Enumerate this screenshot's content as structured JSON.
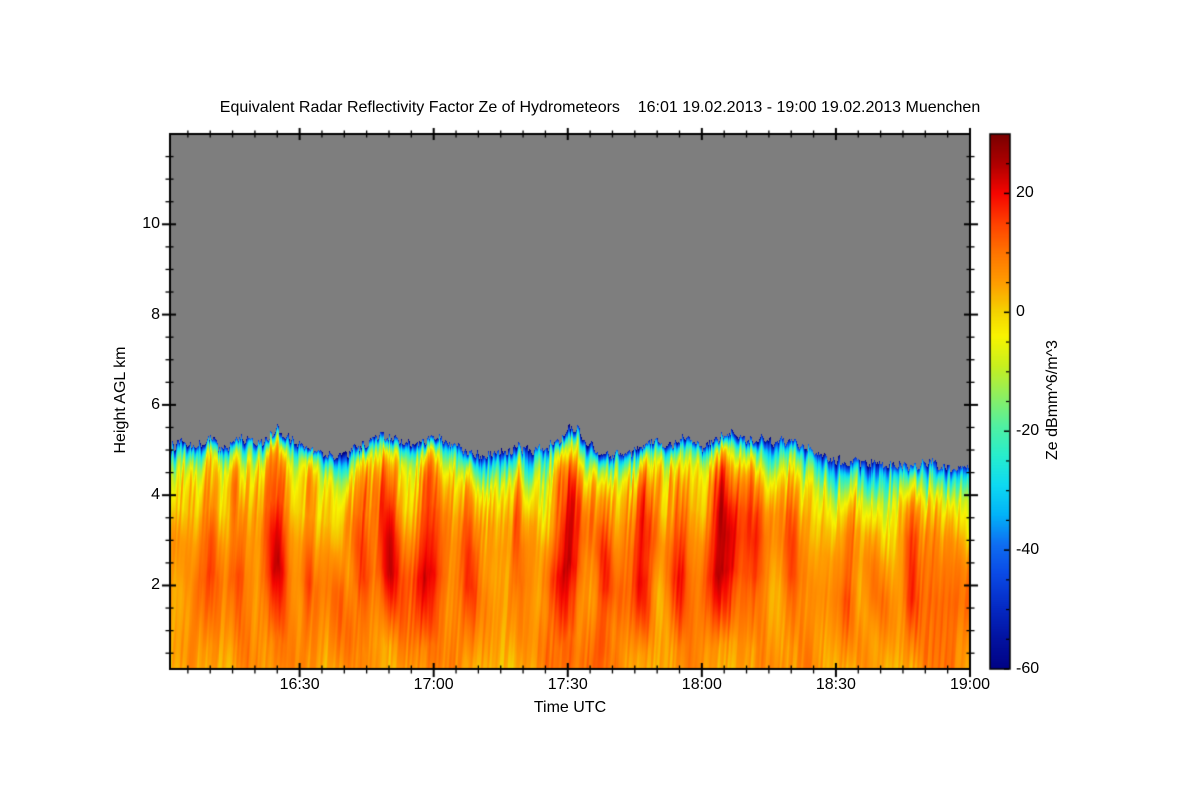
{
  "figure": {
    "title": "Equivalent Radar Reflectivity Factor Ze of Hydrometeors    16:01 19.02.2013 - 19:00 19.02.2013 Muenchen"
  },
  "chart_data": {
    "type": "heatmap",
    "title": "Equivalent Radar Reflectivity Factor Ze of Hydrometeors    16:01 19.02.2013 - 19:00 19.02.2013 Muenchen",
    "xlabel": "Time UTC",
    "ylabel": "Height AGL km",
    "colorbar_label": "Ze dBmm^6/m^3",
    "x_axis": {
      "start": "16:01",
      "end": "19:00",
      "total_minutes": 179,
      "major_tick_labels": [
        "16:30",
        "17:00",
        "17:30",
        "18:00",
        "18:30",
        "19:00"
      ],
      "major_tick_minutes": [
        29,
        59,
        89,
        119,
        149,
        179
      ],
      "minor_tick_interval_min": 5
    },
    "y_axis": {
      "unit": "km",
      "min": 0.15,
      "max": 12.0,
      "major_ticks": [
        2,
        4,
        6,
        8,
        10
      ],
      "minor_tick_interval": 0.5
    },
    "colorbar": {
      "min": -60,
      "max": 30,
      "major_ticks": [
        20,
        0,
        -20,
        -40,
        -60
      ],
      "minor_tick_interval": 5,
      "stops": [
        [
          30,
          "#7A0000"
        ],
        [
          25,
          "#AE0000"
        ],
        [
          20,
          "#F50500"
        ],
        [
          15,
          "#FF4000"
        ],
        [
          10,
          "#FF7400"
        ],
        [
          5,
          "#FF9C00"
        ],
        [
          0,
          "#F4D300"
        ],
        [
          -4,
          "#F8F400"
        ],
        [
          -9,
          "#C8EF1E"
        ],
        [
          -14,
          "#8FEF5F"
        ],
        [
          -19,
          "#52F0A0"
        ],
        [
          -24,
          "#28EECC"
        ],
        [
          -29,
          "#0EDAF2"
        ],
        [
          -34,
          "#02B4F8"
        ],
        [
          -39,
          "#0E6EF2"
        ],
        [
          -44,
          "#0A4AE6"
        ],
        [
          -50,
          "#0428C2"
        ],
        [
          -55,
          "#0212A0"
        ],
        [
          -60,
          "#000284"
        ]
      ]
    },
    "no_data_color": "#7E7E7E",
    "echo_top_km": {
      "t_minutes": [
        0,
        3,
        6,
        9,
        12,
        15,
        18,
        21,
        24,
        27,
        30,
        33,
        36,
        39,
        42,
        45,
        48,
        51,
        54,
        57,
        60,
        63,
        66,
        69,
        72,
        75,
        78,
        81,
        84,
        87,
        90,
        93,
        96,
        99,
        102,
        105,
        108,
        111,
        114,
        117,
        120,
        123,
        126,
        129,
        132,
        135,
        138,
        141,
        144,
        147,
        150,
        153,
        156,
        159,
        162,
        165,
        168,
        171,
        174,
        177,
        179
      ],
      "height_km": [
        5.05,
        5.15,
        5.08,
        5.2,
        5.05,
        5.18,
        5.28,
        5.15,
        5.45,
        5.28,
        5.08,
        4.95,
        4.92,
        4.9,
        5.05,
        5.18,
        5.32,
        5.22,
        5.1,
        5.18,
        5.3,
        5.12,
        5.0,
        4.9,
        4.85,
        4.95,
        5.05,
        5.0,
        5.08,
        5.2,
        5.55,
        5.28,
        4.88,
        4.95,
        4.9,
        5.1,
        5.2,
        5.12,
        5.22,
        5.18,
        5.08,
        5.3,
        5.42,
        5.22,
        5.28,
        5.18,
        5.22,
        5.08,
        4.95,
        4.8,
        4.75,
        4.7,
        4.75,
        4.65,
        4.72,
        4.6,
        4.66,
        4.72,
        4.6,
        4.63,
        4.68
      ]
    },
    "cold_band_km": {
      "t_minutes": [
        0,
        30,
        60,
        70,
        80,
        95,
        110,
        125,
        140,
        155,
        170,
        179
      ],
      "thickness_km": [
        0.32,
        0.3,
        0.35,
        0.55,
        0.6,
        0.4,
        0.35,
        0.4,
        0.55,
        0.65,
        0.6,
        0.55
      ]
    },
    "warm_streaks": [
      {
        "t": 9,
        "w": 1.5,
        "a": 10
      },
      {
        "t": 15,
        "w": 1.2,
        "a": 9
      },
      {
        "t": 24,
        "w": 1.8,
        "a": 15
      },
      {
        "t": 31,
        "w": 1.2,
        "a": 8
      },
      {
        "t": 43,
        "w": 1.5,
        "a": 12
      },
      {
        "t": 49,
        "w": 1.8,
        "a": 14
      },
      {
        "t": 58,
        "w": 2.0,
        "a": 17
      },
      {
        "t": 67,
        "w": 1.3,
        "a": 10
      },
      {
        "t": 78,
        "w": 1.2,
        "a": 8
      },
      {
        "t": 89,
        "w": 2.2,
        "a": 18
      },
      {
        "t": 97,
        "w": 1.4,
        "a": 11
      },
      {
        "t": 106,
        "w": 1.6,
        "a": 12
      },
      {
        "t": 114,
        "w": 1.4,
        "a": 10
      },
      {
        "t": 124,
        "w": 2.6,
        "a": 17
      },
      {
        "t": 131,
        "w": 1.6,
        "a": 11
      },
      {
        "t": 139,
        "w": 1.4,
        "a": 9
      },
      {
        "t": 152,
        "w": 1.3,
        "a": 8
      },
      {
        "t": 166,
        "w": 1.2,
        "a": 8
      }
    ],
    "profile": {
      "depth_km": [
        0,
        0.08,
        0.2,
        0.35,
        0.55,
        0.8,
        1.1,
        1.6,
        2.2,
        3.0,
        4.2,
        5.5
      ],
      "value_db": [
        -53,
        -42,
        -32,
        -24,
        -16,
        -8,
        -3,
        2,
        5,
        7,
        8,
        9
      ]
    },
    "noise": {
      "streak_amp": 9,
      "patch_amp": 5
    }
  }
}
